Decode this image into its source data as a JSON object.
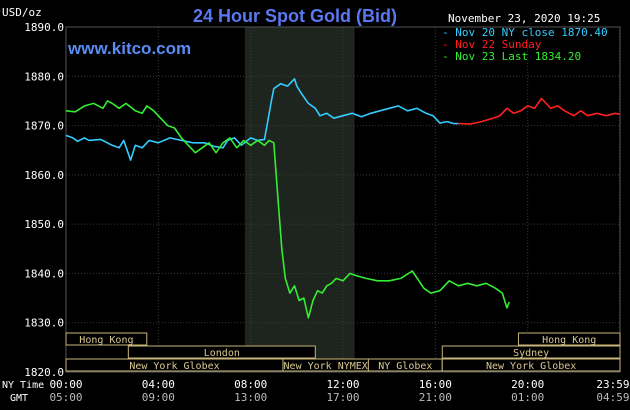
{
  "chart_data": {
    "type": "line",
    "title": "24 Hour Spot Gold (Bid)",
    "brand": "www.kitco.com",
    "timestamp": "November 23, 2020 19:25",
    "y_unit": "USD/oz",
    "ylim": [
      1820,
      1890
    ],
    "y_ticks": [
      "1890.0",
      "1880.0",
      "1870.0",
      "1860.0",
      "1850.0",
      "1840.0",
      "1830.0",
      "1820.0"
    ],
    "grid": true,
    "legend_position": "top-right",
    "x_label_ny": "NY Time",
    "x_label_gmt": "GMT",
    "x_ticks_ny": [
      "00:00",
      "04:00",
      "08:00",
      "12:00",
      "16:00",
      "20:00",
      "23:59"
    ],
    "x_ticks_gmt": [
      "05:00",
      "09:00",
      "13:00",
      "17:00",
      "21:00",
      "01:00",
      "04:59"
    ],
    "x_tick_hours": [
      0,
      4,
      8,
      12,
      16,
      20,
      23.98
    ],
    "shaded_period_hours": [
      7.75,
      12.5
    ],
    "sessions": [
      {
        "label": "Hong Kong",
        "start": 0,
        "end": 3.5,
        "row": 0
      },
      {
        "label": "Hong Kong",
        "start": 19.6,
        "end": 24,
        "row": 0
      },
      {
        "label": "London",
        "start": 2.7,
        "end": 10.8,
        "row": 1
      },
      {
        "label": "Sydney",
        "start": 16.3,
        "end": 24,
        "row": 1
      },
      {
        "label": "New York Globex",
        "start": 0,
        "end": 9.4,
        "row": 2
      },
      {
        "label": "New York NYMEX",
        "start": 9.4,
        "end": 13.1,
        "row": 2
      },
      {
        "label": "NY Globex",
        "start": 13.1,
        "end": 16.3,
        "row": 2
      },
      {
        "label": "New York Globex",
        "start": 16.3,
        "end": 24,
        "row": 2
      }
    ],
    "series": [
      {
        "name": "Nov 20 NY close 1870.40",
        "color": "#33ccff",
        "x": [
          0,
          0.3,
          0.5,
          0.8,
          1.0,
          1.5,
          2.0,
          2.3,
          2.5,
          2.8,
          3.0,
          3.3,
          3.6,
          4.0,
          4.5,
          5.0,
          5.5,
          6.0,
          6.4,
          6.8,
          7.0,
          7.3,
          7.6,
          8.0,
          8.3,
          8.6,
          8.9,
          9.0,
          9.3,
          9.6,
          9.9,
          10.0,
          10.2,
          10.5,
          10.8,
          11.0,
          11.3,
          11.6,
          12.0,
          12.4,
          12.8,
          13.2,
          13.6,
          14.0,
          14.4,
          14.8,
          15.2,
          15.6,
          15.9,
          16.2,
          16.5,
          16.8,
          17.0
        ],
        "values": [
          1868.0,
          1867.5,
          1866.8,
          1867.5,
          1867.0,
          1867.2,
          1866.0,
          1865.5,
          1867.0,
          1863.0,
          1866.0,
          1865.5,
          1867.0,
          1866.5,
          1867.5,
          1867.0,
          1866.5,
          1866.5,
          1865.8,
          1865.5,
          1867.0,
          1867.5,
          1866.0,
          1867.5,
          1867.0,
          1867.2,
          1875.0,
          1877.5,
          1878.5,
          1878.0,
          1879.5,
          1878.0,
          1876.5,
          1874.5,
          1873.5,
          1872.0,
          1872.5,
          1871.5,
          1872.0,
          1872.5,
          1871.8,
          1872.5,
          1873.0,
          1873.5,
          1874.0,
          1873.0,
          1873.5,
          1872.5,
          1872.0,
          1870.5,
          1870.8,
          1870.4,
          1870.4
        ]
      },
      {
        "name": "Nov 22 Sunday",
        "color": "#ff2020",
        "x": [
          17.0,
          17.5,
          18.0,
          18.5,
          18.8,
          19.1,
          19.4,
          19.7,
          20.0,
          20.3,
          20.6,
          21.0,
          21.3,
          21.6,
          22.0,
          22.3,
          22.6,
          23.0,
          23.4,
          23.8,
          23.98
        ],
        "values": [
          1870.4,
          1870.3,
          1870.8,
          1871.5,
          1872.0,
          1873.5,
          1872.5,
          1873.0,
          1874.0,
          1873.5,
          1875.5,
          1873.5,
          1874.0,
          1873.0,
          1872.0,
          1873.0,
          1872.0,
          1872.5,
          1872.0,
          1872.5,
          1872.3
        ]
      },
      {
        "name": "Nov 23 Last 1834.20",
        "color": "#33ee33",
        "x": [
          0,
          0.4,
          0.8,
          1.2,
          1.6,
          1.8,
          2.0,
          2.3,
          2.6,
          3.0,
          3.3,
          3.5,
          3.8,
          4.1,
          4.4,
          4.7,
          5.0,
          5.3,
          5.6,
          5.9,
          6.2,
          6.5,
          6.8,
          7.1,
          7.4,
          7.7,
          8.0,
          8.3,
          8.6,
          8.8,
          9.0,
          9.2,
          9.35,
          9.5,
          9.7,
          9.9,
          10.1,
          10.3,
          10.5,
          10.7,
          10.9,
          11.1,
          11.3,
          11.5,
          11.7,
          12.0,
          12.3,
          12.6,
          13.0,
          13.5,
          14.0,
          14.5,
          15.0,
          15.5,
          15.8,
          16.2,
          16.6,
          17.0,
          17.4,
          17.8,
          18.2,
          18.6,
          18.9,
          19.1,
          19.2
        ],
        "values": [
          1873.0,
          1872.8,
          1874.0,
          1874.5,
          1873.5,
          1875.0,
          1874.5,
          1873.5,
          1874.5,
          1873.0,
          1872.5,
          1874.0,
          1873.0,
          1871.5,
          1870.0,
          1869.5,
          1867.5,
          1866.0,
          1864.5,
          1865.5,
          1866.5,
          1864.5,
          1866.5,
          1867.5,
          1865.5,
          1867.0,
          1866.0,
          1867.0,
          1866.0,
          1867.0,
          1866.5,
          1854.0,
          1845.0,
          1839.0,
          1836.0,
          1837.5,
          1834.5,
          1835.0,
          1831.0,
          1834.5,
          1836.5,
          1836.0,
          1837.5,
          1838.0,
          1839.0,
          1838.5,
          1840.0,
          1839.5,
          1839.0,
          1838.5,
          1838.5,
          1839.0,
          1840.5,
          1837.0,
          1836.0,
          1836.5,
          1838.5,
          1837.5,
          1838.0,
          1837.5,
          1838.0,
          1837.0,
          1836.0,
          1833.0,
          1834.2
        ]
      }
    ]
  }
}
